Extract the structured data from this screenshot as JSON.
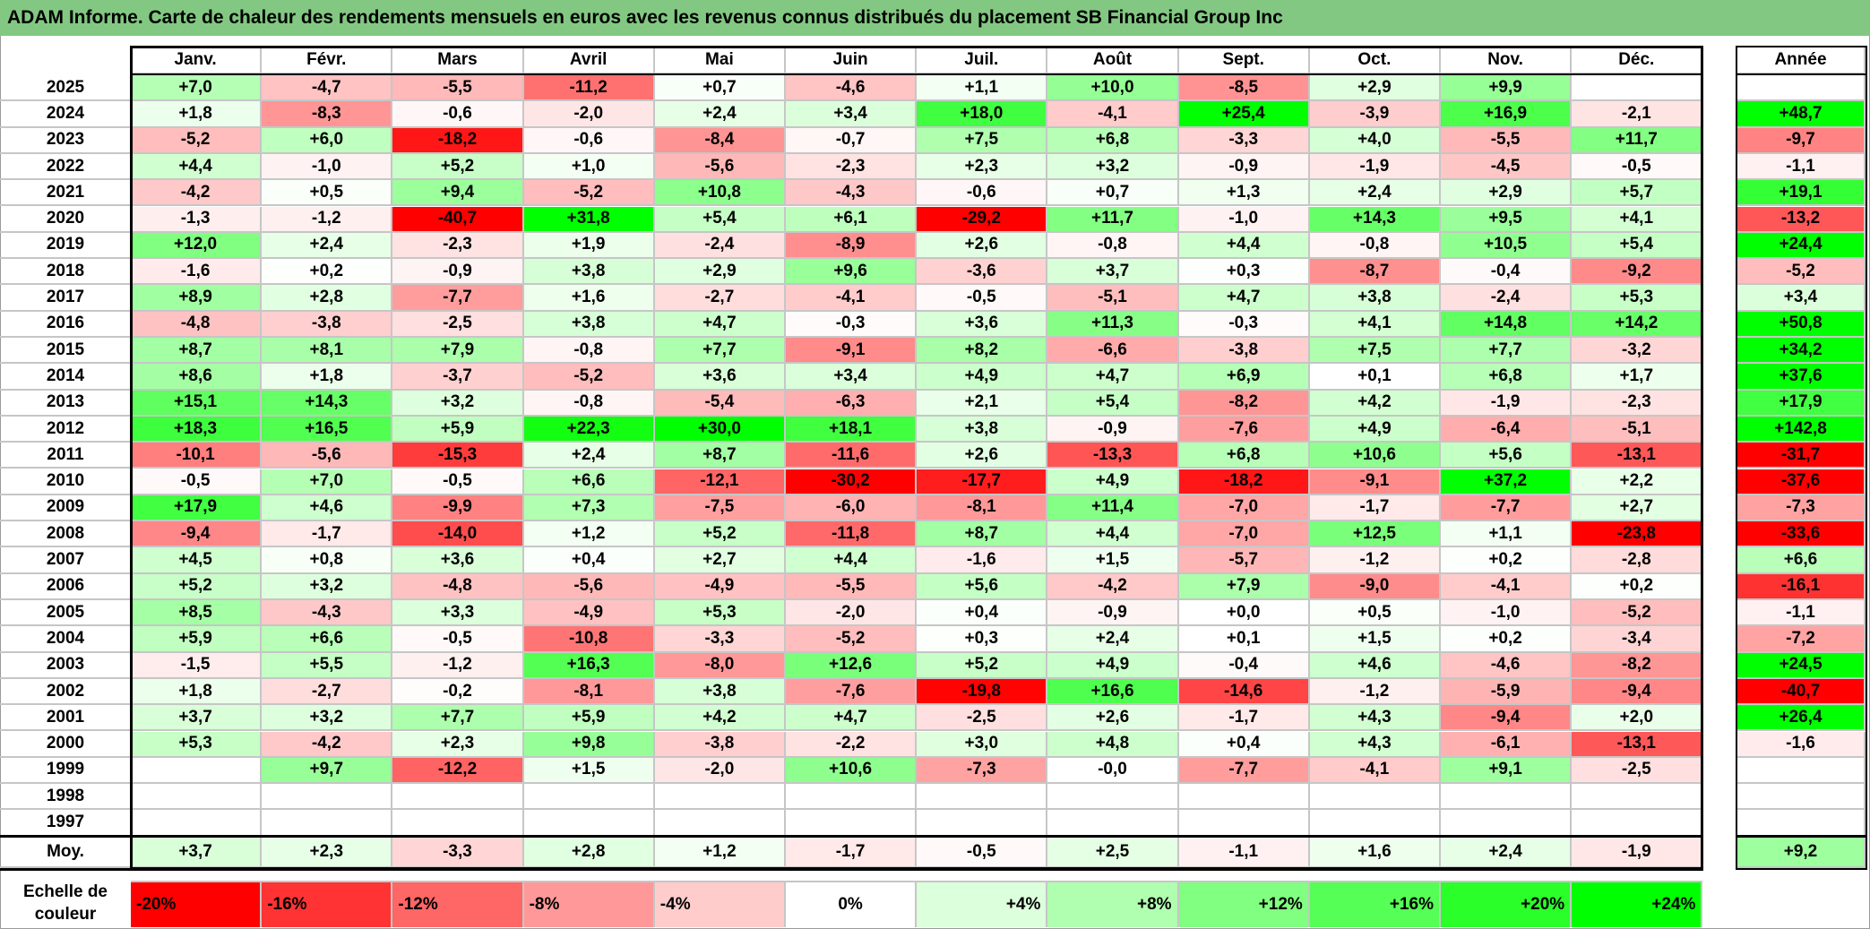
{
  "title": "ADAM Informe. Carte de chaleur des rendements mensuels en euros avec les revenus connus distribués du placement SB Financial Group Inc",
  "chart_data": {
    "type": "heatmap",
    "title": "ADAM Informe. Carte de chaleur des rendements mensuels en euros avec les revenus connus distribués du placement SB Financial Group Inc",
    "months": [
      "Janv.",
      "Févr.",
      "Mars",
      "Avril",
      "Mai",
      "Juin",
      "Juil.",
      "Août",
      "Sept.",
      "Oct.",
      "Nov.",
      "Déc."
    ],
    "annual_header": "Année",
    "rows": [
      {
        "year": "2025",
        "values": [
          "+7,0",
          "-4,7",
          "-5,5",
          "-11,2",
          "+0,7",
          "-4,6",
          "+1,1",
          "+10,0",
          "-8,5",
          "+2,9",
          "+9,9",
          ""
        ],
        "annual": ""
      },
      {
        "year": "2024",
        "values": [
          "+1,8",
          "-8,3",
          "-0,6",
          "-2,0",
          "+2,4",
          "+3,4",
          "+18,0",
          "-4,1",
          "+25,4",
          "-3,9",
          "+16,9",
          "-2,1"
        ],
        "annual": "+48,7"
      },
      {
        "year": "2023",
        "values": [
          "-5,2",
          "+6,0",
          "-18,2",
          "-0,6",
          "-8,4",
          "-0,7",
          "+7,5",
          "+6,8",
          "-3,3",
          "+4,0",
          "-5,5",
          "+11,7"
        ],
        "annual": "-9,7"
      },
      {
        "year": "2022",
        "values": [
          "+4,4",
          "-1,0",
          "+5,2",
          "+1,0",
          "-5,6",
          "-2,3",
          "+2,3",
          "+3,2",
          "-0,9",
          "-1,9",
          "-4,5",
          "-0,5"
        ],
        "annual": "-1,1"
      },
      {
        "year": "2021",
        "values": [
          "-4,2",
          "+0,5",
          "+9,4",
          "-5,2",
          "+10,8",
          "-4,3",
          "-0,6",
          "+0,7",
          "+1,3",
          "+2,4",
          "+2,9",
          "+5,7"
        ],
        "annual": "+19,1"
      },
      {
        "year": "2020",
        "values": [
          "-1,3",
          "-1,2",
          "-40,7",
          "+31,8",
          "+5,4",
          "+6,1",
          "-29,2",
          "+11,7",
          "-1,0",
          "+14,3",
          "+9,5",
          "+4,1"
        ],
        "annual": "-13,2"
      },
      {
        "year": "2019",
        "values": [
          "+12,0",
          "+2,4",
          "-2,3",
          "+1,9",
          "-2,4",
          "-8,9",
          "+2,6",
          "-0,8",
          "+4,4",
          "-0,8",
          "+10,5",
          "+5,4"
        ],
        "annual": "+24,4"
      },
      {
        "year": "2018",
        "values": [
          "-1,6",
          "+0,2",
          "-0,9",
          "+3,8",
          "+2,9",
          "+9,6",
          "-3,6",
          "+3,7",
          "+0,3",
          "-8,7",
          "-0,4",
          "-9,2"
        ],
        "annual": "-5,2"
      },
      {
        "year": "2017",
        "values": [
          "+8,9",
          "+2,8",
          "-7,7",
          "+1,6",
          "-2,7",
          "-4,1",
          "-0,5",
          "-5,1",
          "+4,7",
          "+3,8",
          "-2,4",
          "+5,3"
        ],
        "annual": "+3,4"
      },
      {
        "year": "2016",
        "values": [
          "-4,8",
          "-3,8",
          "-2,5",
          "+3,8",
          "+4,7",
          "-0,3",
          "+3,6",
          "+11,3",
          "-0,3",
          "+4,1",
          "+14,8",
          "+14,2"
        ],
        "annual": "+50,8"
      },
      {
        "year": "2015",
        "values": [
          "+8,7",
          "+8,1",
          "+7,9",
          "-0,8",
          "+7,7",
          "-9,1",
          "+8,2",
          "-6,6",
          "-3,8",
          "+7,5",
          "+7,7",
          "-3,2"
        ],
        "annual": "+34,2"
      },
      {
        "year": "2014",
        "values": [
          "+8,6",
          "+1,8",
          "-3,7",
          "-5,2",
          "+3,6",
          "+3,4",
          "+4,9",
          "+4,7",
          "+6,9",
          "+0,1",
          "+6,8",
          "+1,7"
        ],
        "annual": "+37,6"
      },
      {
        "year": "2013",
        "values": [
          "+15,1",
          "+14,3",
          "+3,2",
          "-0,8",
          "-5,4",
          "-6,3",
          "+2,1",
          "+5,4",
          "-8,2",
          "+4,2",
          "-1,9",
          "-2,3"
        ],
        "annual": "+17,9"
      },
      {
        "year": "2012",
        "values": [
          "+18,3",
          "+16,5",
          "+5,9",
          "+22,3",
          "+30,0",
          "+18,1",
          "+3,8",
          "-0,9",
          "-7,6",
          "+4,9",
          "-6,4",
          "-5,1"
        ],
        "annual": "+142,8"
      },
      {
        "year": "2011",
        "values": [
          "-10,1",
          "-5,6",
          "-15,3",
          "+2,4",
          "+8,7",
          "-11,6",
          "+2,6",
          "-13,3",
          "+6,8",
          "+10,6",
          "+5,6",
          "-13,1"
        ],
        "annual": "-31,7"
      },
      {
        "year": "2010",
        "values": [
          "-0,5",
          "+7,0",
          "-0,5",
          "+6,6",
          "-12,1",
          "-30,2",
          "-17,7",
          "+4,9",
          "-18,2",
          "-9,1",
          "+37,2",
          "+2,2"
        ],
        "annual": "-37,6"
      },
      {
        "year": "2009",
        "values": [
          "+17,9",
          "+4,6",
          "-9,9",
          "+7,3",
          "-7,5",
          "-6,0",
          "-8,1",
          "+11,4",
          "-7,0",
          "-1,7",
          "-7,7",
          "+2,7"
        ],
        "annual": "-7,3"
      },
      {
        "year": "2008",
        "values": [
          "-9,4",
          "-1,7",
          "-14,0",
          "+1,2",
          "+5,2",
          "-11,8",
          "+8,7",
          "+4,4",
          "-7,0",
          "+12,5",
          "+1,1",
          "-23,8"
        ],
        "annual": "-33,6"
      },
      {
        "year": "2007",
        "values": [
          "+4,5",
          "+0,8",
          "+3,6",
          "+0,4",
          "+2,7",
          "+4,4",
          "-1,6",
          "+1,5",
          "-5,7",
          "-1,2",
          "+0,2",
          "-2,8"
        ],
        "annual": "+6,6"
      },
      {
        "year": "2006",
        "values": [
          "+5,2",
          "+3,2",
          "-4,8",
          "-5,6",
          "-4,9",
          "-5,5",
          "+5,6",
          "-4,2",
          "+7,9",
          "-9,0",
          "-4,1",
          "+0,2"
        ],
        "annual": "-16,1"
      },
      {
        "year": "2005",
        "values": [
          "+8,5",
          "-4,3",
          "+3,3",
          "-4,9",
          "+5,3",
          "-2,0",
          "+0,4",
          "-0,9",
          "+0,0",
          "+0,5",
          "-1,0",
          "-5,2"
        ],
        "annual": "-1,1"
      },
      {
        "year": "2004",
        "values": [
          "+5,9",
          "+6,6",
          "-0,5",
          "-10,8",
          "-3,3",
          "-5,2",
          "+0,3",
          "+2,4",
          "+0,1",
          "+1,5",
          "+0,2",
          "-3,4"
        ],
        "annual": "-7,2"
      },
      {
        "year": "2003",
        "values": [
          "-1,5",
          "+5,5",
          "-1,2",
          "+16,3",
          "-8,0",
          "+12,6",
          "+5,2",
          "+4,9",
          "-0,4",
          "+4,6",
          "-4,6",
          "-8,2"
        ],
        "annual": "+24,5"
      },
      {
        "year": "2002",
        "values": [
          "+1,8",
          "-2,7",
          "-0,2",
          "-8,1",
          "+3,8",
          "-7,6",
          "-19,8",
          "+16,6",
          "-14,6",
          "-1,2",
          "-5,9",
          "-9,4"
        ],
        "annual": "-40,7"
      },
      {
        "year": "2001",
        "values": [
          "+3,7",
          "+3,2",
          "+7,7",
          "+5,9",
          "+4,2",
          "+4,7",
          "-2,5",
          "+2,6",
          "-1,7",
          "+4,3",
          "-9,4",
          "+2,0"
        ],
        "annual": "+26,4"
      },
      {
        "year": "2000",
        "values": [
          "+5,3",
          "-4,2",
          "+2,3",
          "+9,8",
          "-3,8",
          "-2,2",
          "+3,0",
          "+4,8",
          "+0,4",
          "+4,3",
          "-6,1",
          "-13,1"
        ],
        "annual": "-1,6"
      },
      {
        "year": "1999",
        "values": [
          "",
          "+9,7",
          "-12,2",
          "+1,5",
          "-2,0",
          "+10,6",
          "-7,3",
          "-0,0",
          "-7,7",
          "-4,1",
          "+9,1",
          "-2,5"
        ],
        "annual": ""
      },
      {
        "year": "1998",
        "values": [
          "",
          "",
          "",
          "",
          "",
          "",
          "",
          "",
          "",
          "",
          "",
          ""
        ],
        "annual": ""
      },
      {
        "year": "1997",
        "values": [
          "",
          "",
          "",
          "",
          "",
          "",
          "",
          "",
          "",
          "",
          "",
          ""
        ],
        "annual": ""
      }
    ],
    "average": {
      "label": "Moy.",
      "values": [
        "+3,7",
        "+2,3",
        "-3,3",
        "+2,8",
        "+1,2",
        "-1,7",
        "-0,5",
        "+2,5",
        "-1,1",
        "+1,6",
        "+2,4",
        "-1,9"
      ],
      "annual": "+9,2"
    },
    "color_scale": {
      "label": "Echelle de couleur",
      "steps": [
        {
          "label": "-20%",
          "value": -20,
          "color": "#ff0000"
        },
        {
          "label": "-16%",
          "value": -16,
          "color": "#ff3333"
        },
        {
          "label": "-12%",
          "value": -12,
          "color": "#ff6666"
        },
        {
          "label": "-8%",
          "value": -8,
          "color": "#ff9999"
        },
        {
          "label": "-4%",
          "value": -4,
          "color": "#ffcccc"
        },
        {
          "label": "0%",
          "value": 0,
          "color": "#ffffff"
        },
        {
          "label": "+4%",
          "value": 4,
          "color": "#dcffdc"
        },
        {
          "label": "+8%",
          "value": 8,
          "color": "#b0ffb0"
        },
        {
          "label": "+12%",
          "value": 12,
          "color": "#80ff80"
        },
        {
          "label": "+16%",
          "value": 16,
          "color": "#55ff55"
        },
        {
          "label": "+20%",
          "value": 20,
          "color": "#2aff2a"
        },
        {
          "label": "+24%",
          "value": 24,
          "color": "#00ff00"
        }
      ]
    }
  }
}
